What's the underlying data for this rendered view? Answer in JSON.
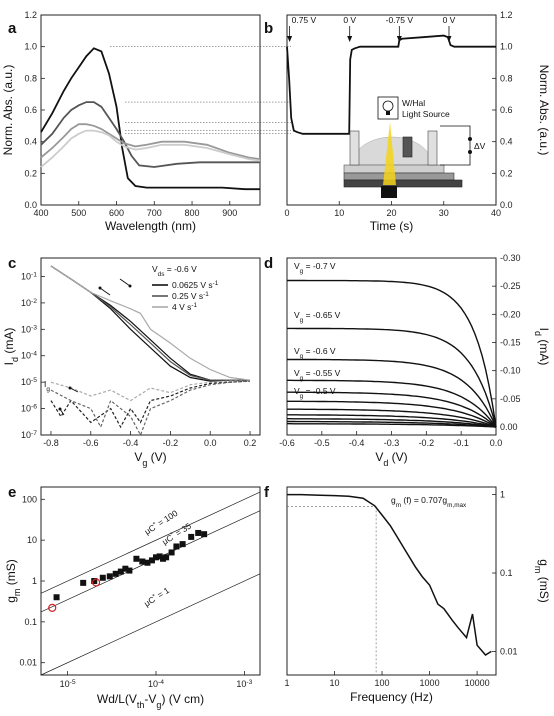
{
  "panel_labels": [
    "a",
    "b",
    "c",
    "d",
    "e",
    "f"
  ],
  "chart_data": [
    {
      "panel": "a",
      "type": "line",
      "xlabel": "Wavelength (nm)",
      "ylabel": "Norm. Abs. (a.u.)",
      "xlim": [
        400,
        980
      ],
      "ylim": [
        0.0,
        1.2
      ],
      "xticks": [
        "400",
        "500",
        "600",
        "700",
        "800",
        "900"
      ],
      "yticks": [
        "0.0",
        "0.2",
        "0.4",
        "0.6",
        "0.8",
        "1.0",
        "1.2"
      ],
      "series": [
        {
          "color": "#111111",
          "x": [
            400,
            430,
            460,
            480,
            500,
            520,
            540,
            560,
            580,
            600,
            615,
            630,
            650,
            680,
            720,
            800,
            880,
            940,
            980
          ],
          "y": [
            0.46,
            0.58,
            0.72,
            0.8,
            0.87,
            0.94,
            0.99,
            0.97,
            0.83,
            0.62,
            0.36,
            0.17,
            0.12,
            0.11,
            0.11,
            0.11,
            0.11,
            0.1,
            0.1
          ]
        },
        {
          "color": "#555555",
          "x": [
            400,
            430,
            460,
            480,
            500,
            520,
            540,
            560,
            580,
            600,
            620,
            640,
            660,
            700,
            760,
            820,
            880,
            940,
            980
          ],
          "y": [
            0.38,
            0.45,
            0.55,
            0.6,
            0.63,
            0.65,
            0.65,
            0.62,
            0.55,
            0.48,
            0.4,
            0.31,
            0.25,
            0.24,
            0.26,
            0.27,
            0.27,
            0.27,
            0.27
          ]
        },
        {
          "color": "#999999",
          "x": [
            400,
            430,
            460,
            480,
            500,
            520,
            540,
            560,
            580,
            600,
            620,
            650,
            680,
            720,
            780,
            840,
            900,
            950,
            980
          ],
          "y": [
            0.3,
            0.36,
            0.43,
            0.48,
            0.51,
            0.51,
            0.5,
            0.48,
            0.45,
            0.42,
            0.39,
            0.37,
            0.38,
            0.4,
            0.4,
            0.38,
            0.33,
            0.3,
            0.29
          ]
        },
        {
          "color": "#cccccc",
          "x": [
            400,
            430,
            460,
            480,
            500,
            520,
            540,
            560,
            580,
            600,
            620,
            650,
            680,
            720,
            780,
            840,
            900,
            950,
            980
          ],
          "y": [
            0.24,
            0.3,
            0.37,
            0.42,
            0.45,
            0.47,
            0.47,
            0.46,
            0.44,
            0.4,
            0.37,
            0.35,
            0.36,
            0.38,
            0.38,
            0.36,
            0.32,
            0.29,
            0.28
          ]
        }
      ]
    },
    {
      "panel": "b",
      "type": "line",
      "xlabel": "Time (s)",
      "ylabel": "Norm. Abs. (a.u.)",
      "xlim": [
        0,
        40
      ],
      "ylim": [
        0.0,
        1.2
      ],
      "xticks": [
        "0",
        "10",
        "20",
        "30",
        "40"
      ],
      "yticks": [
        "0.0",
        "0.2",
        "0.4",
        "0.6",
        "0.8",
        "1.0",
        "1.2"
      ],
      "annotations": [
        "0.75 V",
        "0 V",
        "-0.75 V",
        "0 V"
      ],
      "annotation_x": [
        0.5,
        12,
        21.5,
        31
      ],
      "inset_label": "W/Hal Light Source",
      "inset_symbol": "ΔV",
      "series": [
        {
          "color": "#111111",
          "x": [
            0,
            0.4,
            0.8,
            1.3,
            2,
            3,
            4,
            6,
            8,
            10,
            11.9,
            12.1,
            12.4,
            13,
            14,
            16,
            18,
            21.3,
            21.5,
            22,
            26,
            30,
            30.8,
            31.3,
            32,
            36,
            40
          ],
          "y": [
            1.0,
            0.8,
            0.55,
            0.47,
            0.46,
            0.45,
            0.45,
            0.45,
            0.45,
            0.45,
            0.45,
            0.92,
            0.98,
            0.99,
            1.0,
            1.0,
            1.0,
            1.0,
            1.04,
            1.05,
            1.06,
            1.07,
            1.06,
            1.01,
            1.0,
            1.0,
            1.0
          ]
        }
      ]
    },
    {
      "panel": "c",
      "type": "line",
      "yscale": "log",
      "xlabel": "Vg (V)",
      "ylabel": "Id (mA)",
      "xlim": [
        -0.85,
        0.25
      ],
      "ylim": [
        1e-07,
        0.5
      ],
      "xticks": [
        "-0.8",
        "-0.6",
        "-0.4",
        "-0.2",
        "0.0",
        "0.2"
      ],
      "yticks": [
        "10^-7",
        "10^-6",
        "10^-5",
        "10^-4",
        "10^-3",
        "10^-2",
        "10^-1"
      ],
      "header": "Vds = -0.6 V",
      "legend": [
        "0.0625 V s^-1",
        "0.25 V s^-1",
        "4 V s^-1"
      ],
      "ig_label": "Ig",
      "series": [
        {
          "color": "#111111",
          "x": [
            -0.8,
            -0.7,
            -0.6,
            -0.5,
            -0.4,
            -0.3,
            -0.2,
            -0.1,
            0.0,
            0.1,
            0.2
          ],
          "y": [
            0.25,
            0.08,
            0.025,
            0.008,
            0.002,
            0.0004,
            8e-05,
            2e-05,
            1.2e-05,
            1.2e-05,
            1.2e-05
          ]
        },
        {
          "color": "#111111",
          "x": [
            -0.8,
            -0.7,
            -0.6,
            -0.5,
            -0.4,
            -0.3,
            -0.2,
            -0.1,
            0.0,
            0.1,
            0.2
          ],
          "y": [
            0.25,
            0.08,
            0.025,
            0.006,
            0.001,
            0.0002,
            4e-05,
            1.5e-05,
            1.1e-05,
            1.2e-05,
            1.2e-05
          ]
        },
        {
          "color": "#555555",
          "x": [
            -0.8,
            -0.7,
            -0.6,
            -0.5,
            -0.4,
            -0.3,
            -0.2,
            -0.1,
            0.0,
            0.1,
            0.2
          ],
          "y": [
            0.25,
            0.08,
            0.025,
            0.007,
            0.0015,
            0.0003,
            6e-05,
            1.8e-05,
            1.2e-05,
            1.2e-05,
            1.2e-05
          ]
        },
        {
          "color": "#aaaaaa",
          "x": [
            -0.8,
            -0.7,
            -0.6,
            -0.5,
            -0.4,
            -0.35,
            -0.3,
            -0.2,
            -0.1,
            0.0,
            0.1,
            0.2
          ],
          "y": [
            0.25,
            0.08,
            0.025,
            0.012,
            0.006,
            0.004,
            0.001,
            0.0003,
            8e-05,
            3e-05,
            1.5e-05,
            1.2e-05
          ]
        },
        {
          "color": "#aaaaaa",
          "dash": "3,2",
          "x": [
            -0.8,
            -0.7,
            -0.6,
            -0.5,
            -0.4,
            -0.3,
            -0.2,
            -0.1,
            0.0,
            0.1,
            0.2
          ],
          "y": [
            1e-05,
            6e-06,
            3e-06,
            5e-06,
            2e-06,
            6e-06,
            4e-06,
            8e-06,
            1e-05,
            1.1e-05,
            1.1e-05
          ]
        },
        {
          "color": "#222222",
          "dash": "3,2",
          "x": [
            -0.8,
            -0.75,
            -0.7,
            -0.6,
            -0.5,
            -0.45,
            -0.4,
            -0.35,
            -0.3,
            -0.2,
            -0.1,
            0.0,
            0.1,
            0.2
          ],
          "y": [
            2e-06,
            5e-07,
            2e-06,
            3e-07,
            1e-06,
            2e-07,
            1e-06,
            3e-07,
            2e-06,
            3e-06,
            6e-06,
            9e-06,
            1e-05,
            1.1e-05
          ]
        },
        {
          "color": "#666666",
          "dash": "3,2",
          "x": [
            -0.8,
            -0.7,
            -0.6,
            -0.55,
            -0.5,
            -0.4,
            -0.35,
            -0.3,
            -0.2,
            -0.1,
            0.0,
            0.1,
            0.2
          ],
          "y": [
            5e-06,
            2e-06,
            1e-06,
            2e-07,
            2e-06,
            5e-07,
            1e-07,
            1e-06,
            2e-06,
            5e-06,
            8e-06,
            1e-05,
            1.1e-05
          ]
        }
      ]
    },
    {
      "panel": "d",
      "type": "line",
      "xlabel": "Vd (V)",
      "ylabel": "Id (mA)",
      "xlim": [
        -0.6,
        0.0
      ],
      "ylim": [
        0.0,
        -0.3
      ],
      "y_inverted": true,
      "xticks": [
        "-0.6",
        "-0.5",
        "-0.4",
        "-0.3",
        "-0.2",
        "-0.1",
        "0.0"
      ],
      "yticks": [
        "0.00",
        "-0.05",
        "-0.10",
        "-0.15",
        "-0.20",
        "-0.25",
        "-0.30"
      ],
      "curve_labels": [
        "Vg = -0.7 V",
        "Vg = -0.65 V",
        "Vg = -0.6 V",
        "Vg = -0.55 V",
        "Vg = -0.5 V"
      ],
      "saturation_currents": [
        -0.26,
        -0.175,
        -0.12,
        -0.083,
        -0.062,
        -0.046,
        -0.032,
        -0.022,
        -0.015,
        -0.01,
        -0.006
      ]
    },
    {
      "panel": "e",
      "type": "scatter",
      "xscale": "log",
      "yscale": "log",
      "xlabel": "Wd/L(Vth-Vg) (V cm)",
      "ylabel": "gm (mS)",
      "xlim": [
        5e-06,
        0.0015
      ],
      "ylim": [
        0.005,
        200
      ],
      "xticks": [
        "10^-5",
        "10^-4",
        "10^-3"
      ],
      "yticks": [
        "0.01",
        "0.1",
        "1",
        "10",
        "100"
      ],
      "lines": [
        {
          "label": "μC* = 100",
          "k": 100
        },
        {
          "label": "μC* = 35",
          "k": 35
        },
        {
          "label": "μC* = 1",
          "k": 1
        }
      ],
      "x": [
        7.5e-06,
        1.5e-05,
        2e-05,
        2.5e-05,
        3e-05,
        3.5e-05,
        4e-05,
        4.5e-05,
        5e-05,
        6e-05,
        7e-05,
        8e-05,
        9e-05,
        0.0001,
        0.00011,
        0.00012,
        0.00013,
        0.00015,
        0.00017,
        0.0002,
        0.00025,
        0.0003,
        0.00035
      ],
      "y": [
        0.4,
        0.9,
        1.0,
        1.2,
        1.3,
        1.5,
        1.7,
        2.0,
        1.8,
        3.5,
        3.0,
        2.8,
        3.2,
        3.8,
        4.0,
        3.5,
        3.8,
        5.0,
        7.0,
        8.0,
        12,
        15,
        14
      ],
      "open_markers": {
        "x": [
          6.7e-06,
          2.1e-05
        ],
        "y": [
          0.22,
          0.92
        ]
      }
    },
    {
      "panel": "f",
      "type": "line",
      "xscale": "log",
      "yscale": "log",
      "xlabel": "Frequency (Hz)",
      "ylabel": "gm (mS)",
      "xlim": [
        1,
        25000
      ],
      "ylim": [
        0.005,
        1.25
      ],
      "xticks": [
        "1",
        "10",
        "100",
        "1000",
        "10000"
      ],
      "yticks": [
        "0.01",
        "0.1",
        "1"
      ],
      "annotation": "gm (f) = 0.707gm,max",
      "cutoff_hz": 75,
      "level": 0.707,
      "x": [
        1,
        2,
        5,
        10,
        20,
        40,
        70,
        100,
        150,
        200,
        300,
        500,
        700,
        1000,
        1500,
        2000,
        3000,
        4000,
        6000,
        8000,
        10000,
        15000,
        20000
      ],
      "y": [
        1.0,
        1.0,
        0.98,
        0.97,
        0.95,
        0.9,
        0.72,
        0.55,
        0.4,
        0.3,
        0.2,
        0.12,
        0.09,
        0.07,
        0.04,
        0.035,
        0.025,
        0.02,
        0.015,
        0.03,
        0.012,
        0.009,
        0.01
      ]
    }
  ]
}
